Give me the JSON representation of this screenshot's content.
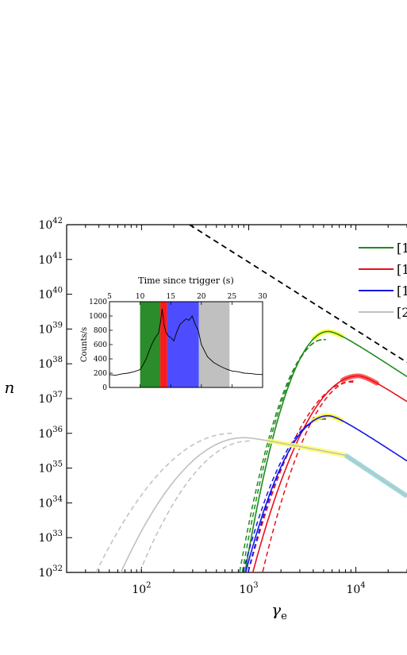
{
  "chart_data": [
    {
      "type": "line",
      "xlabel": "γ",
      "xlabel_sub": "e",
      "ylabel": "n",
      "x_scale": "log",
      "y_scale": "log",
      "xlim": [
        20,
        30000
      ],
      "ylim": [
        1e+32,
        1e+42
      ],
      "x_ticks": [
        {
          "value": 100,
          "base": "10",
          "exp": "2"
        },
        {
          "value": 1000,
          "base": "10",
          "exp": "3"
        },
        {
          "value": 10000,
          "base": "10",
          "exp": "4"
        }
      ],
      "y_ticks": [
        {
          "value": 1e+32,
          "base": "10",
          "exp": "32"
        },
        {
          "value": 1e+33,
          "base": "10",
          "exp": "33"
        },
        {
          "value": 1e+34,
          "base": "10",
          "exp": "34"
        },
        {
          "value": 1e+35,
          "base": "10",
          "exp": "35"
        },
        {
          "value": 1e+36,
          "base": "10",
          "exp": "36"
        },
        {
          "value": 1e+37,
          "base": "10",
          "exp": "37"
        },
        {
          "value": 1e+38,
          "base": "10",
          "exp": "38"
        },
        {
          "value": 1e+39,
          "base": "10",
          "exp": "39"
        },
        {
          "value": 1e+40,
          "base": "10",
          "exp": "40"
        },
        {
          "value": 1e+41,
          "base": "10",
          "exp": "41"
        },
        {
          "value": 1e+42,
          "base": "10",
          "exp": "42"
        }
      ],
      "legend_position": "top-right",
      "series": [
        {
          "name": "[1",
          "color": "#1e8c1e",
          "highlight": "#ffff33",
          "peak": {
            "x": 5500,
            "y": 8.5e+38
          },
          "rise_slope": 3.9,
          "fall_slope": 2.05,
          "x_start": 900,
          "x_end": 30000,
          "highlight_range": [
            4000,
            7500
          ],
          "band_low": {
            "x0": 850,
            "peak_x": 5000,
            "peak_y": 5e+38
          },
          "band_high": {
            "x0": 800,
            "peak_x": 5000,
            "peak_y": 5e+38
          }
        },
        {
          "name": "[1",
          "color": "#e8101a",
          "highlight": "#ff4d4d",
          "peak": {
            "x": 10500,
            "y": 4.5e+37
          },
          "rise_slope": 3.1,
          "fall_slope": 2.05,
          "x_start": 1050,
          "x_end": 30000,
          "highlight_range": [
            7500,
            16000
          ],
          "band_low": {
            "x0": 1300,
            "peak_x": 9500,
            "peak_y": 3.2e+37
          },
          "band_high": {
            "x0": 950,
            "peak_x": 9000,
            "peak_y": 3e+37
          }
        },
        {
          "name": "[1",
          "color": "#1515e6",
          "highlight": "#ffff33",
          "peak": {
            "x": 5500,
            "y": 3.2e+36
          },
          "rise_slope": 3.3,
          "fall_slope": 2.05,
          "x_start": 900,
          "x_end": 30000,
          "highlight_range": [
            4000,
            7500
          ],
          "band_low": {
            "x0": 950,
            "peak_x": 5000,
            "peak_y": 2.6e+36
          },
          "band_high": {
            "x0": 850,
            "peak_x": 5000,
            "peak_y": 2.6e+36
          }
        },
        {
          "name": "[2",
          "color": "#c0c0c0",
          "highlight": "#ffff66",
          "highlight_tail": "#8fd6dc",
          "peak": {
            "x": 900,
            "y": 7.5e+35
          },
          "rise_slope": 2.1,
          "fall_slope": 0.6,
          "x_start": 60,
          "x_end": 8000,
          "tail_slope": 2.05,
          "highlight_range": [
            1500,
            8000
          ],
          "band_low": {
            "x0": 35,
            "peak_x": 700,
            "peak_y": 1e+36
          },
          "band_high": {
            "x0": 90,
            "peak_x": 1000,
            "peak_y": 6e+35
          }
        }
      ],
      "reference_line": {
        "style": "dashed",
        "color": "#000000",
        "from": {
          "x": 280,
          "y": 1e+42
        },
        "to": {
          "x": 30000,
          "y": 1.1e+38
        }
      }
    },
    {
      "type": "line",
      "xlabel": "Time since trigger (s)",
      "ylabel": "Counts/s",
      "xlim": [
        5,
        30
      ],
      "ylim": [
        0,
        1200
      ],
      "x_ticks": [
        5,
        10,
        15,
        20,
        25,
        30
      ],
      "y_ticks": [
        0,
        200,
        400,
        600,
        800,
        1000,
        1200
      ],
      "bands": [
        {
          "from": 10,
          "to": 13.3,
          "color": "#2a8c2a"
        },
        {
          "from": 13.3,
          "to": 14.4,
          "color": "#ff1a1a"
        },
        {
          "from": 14.4,
          "to": 19.6,
          "color": "#4d4dff"
        },
        {
          "from": 19.6,
          "to": 24.6,
          "color": "#c0c0c0"
        }
      ],
      "lightcurve": {
        "t": [
          5,
          6,
          7,
          8,
          9,
          10,
          10.5,
          11,
          11.5,
          12,
          12.5,
          13,
          13.3,
          13.6,
          13.9,
          14.2,
          14.6,
          15,
          15.5,
          16,
          16.5,
          17,
          17.5,
          18,
          18.5,
          19,
          19.5,
          20,
          21,
          22,
          23,
          24,
          25,
          26,
          27,
          28,
          29,
          30
        ],
        "counts": [
          180,
          170,
          190,
          200,
          220,
          250,
          320,
          400,
          520,
          620,
          700,
          760,
          900,
          1100,
          880,
          780,
          720,
          700,
          650,
          780,
          880,
          920,
          960,
          940,
          1000,
          880,
          800,
          600,
          430,
          350,
          300,
          260,
          230,
          220,
          200,
          195,
          185,
          180
        ]
      }
    }
  ]
}
